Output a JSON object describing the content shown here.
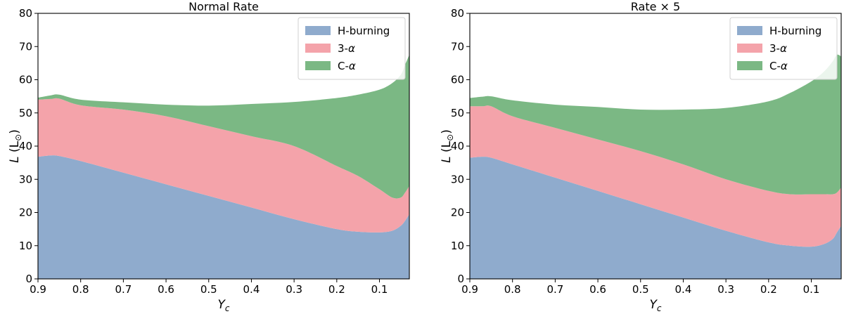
{
  "chart_data": [
    {
      "type": "area",
      "stacked": true,
      "title": "Normal Rate",
      "xlabel": "Y",
      "xlabel_sub": "c",
      "ylabel": "L",
      "ylabel_unit_open": "(L",
      "ylabel_unit_sub": "⊙",
      "ylabel_unit_close": ")",
      "xlim": [
        0.9,
        0.03
      ],
      "ylim": [
        0,
        80
      ],
      "xticks": [
        0.9,
        0.8,
        0.7,
        0.6,
        0.5,
        0.4,
        0.3,
        0.2,
        0.1
      ],
      "xtick_labels": [
        "0.9",
        "0.8",
        "0.7",
        "0.6",
        "0.5",
        "0.4",
        "0.3",
        "0.2",
        "0.1"
      ],
      "yticks": [
        0,
        10,
        20,
        30,
        40,
        50,
        60,
        70,
        80
      ],
      "ytick_labels": [
        "0",
        "10",
        "20",
        "30",
        "40",
        "50",
        "60",
        "70",
        "80"
      ],
      "legend_position": "top-right",
      "x": [
        0.9,
        0.87,
        0.85,
        0.8,
        0.7,
        0.6,
        0.5,
        0.4,
        0.3,
        0.2,
        0.15,
        0.1,
        0.07,
        0.05,
        0.04,
        0.03
      ],
      "series": [
        {
          "name": "H-burning",
          "name_prefix": "",
          "name_italic": "",
          "color": "#8fabcd",
          "values": [
            36.8,
            37.2,
            37.0,
            35.5,
            32.0,
            28.5,
            25.0,
            21.5,
            18.0,
            15.0,
            14.2,
            14.0,
            14.5,
            16.0,
            17.5,
            19.5
          ]
        },
        {
          "name": "3-α",
          "name_prefix": "3-",
          "name_italic": "α",
          "color": "#f4a3aa",
          "values": [
            17.2,
            17.0,
            17.3,
            16.8,
            19.0,
            20.5,
            21.0,
            21.5,
            22.0,
            19.0,
            16.8,
            13.0,
            10.0,
            8.5,
            8.5,
            8.5
          ]
        },
        {
          "name": "C-α",
          "name_prefix": "C-",
          "name_italic": "α",
          "color": "#7bb884",
          "values": [
            0.6,
            1.1,
            1.2,
            1.7,
            2.2,
            3.5,
            6.2,
            9.7,
            13.3,
            20.5,
            24.5,
            30.0,
            34.5,
            37.0,
            38.5,
            39.5
          ]
        }
      ]
    },
    {
      "type": "area",
      "stacked": true,
      "title": "Rate × 5",
      "xlabel": "Y",
      "xlabel_sub": "c",
      "ylabel": "L",
      "ylabel_unit_open": "(L",
      "ylabel_unit_sub": "⊙",
      "ylabel_unit_close": ")",
      "xlim": [
        0.9,
        0.03
      ],
      "ylim": [
        0,
        80
      ],
      "xticks": [
        0.9,
        0.8,
        0.7,
        0.6,
        0.5,
        0.4,
        0.3,
        0.2,
        0.1
      ],
      "xtick_labels": [
        "0.9",
        "0.8",
        "0.7",
        "0.6",
        "0.5",
        "0.4",
        "0.3",
        "0.2",
        "0.1"
      ],
      "yticks": [
        0,
        10,
        20,
        30,
        40,
        50,
        60,
        70,
        80
      ],
      "ytick_labels": [
        "0",
        "10",
        "20",
        "30",
        "40",
        "50",
        "60",
        "70",
        "80"
      ],
      "legend_position": "top-right",
      "x": [
        0.9,
        0.87,
        0.85,
        0.8,
        0.7,
        0.6,
        0.5,
        0.4,
        0.3,
        0.2,
        0.15,
        0.1,
        0.07,
        0.05,
        0.04,
        0.03
      ],
      "series": [
        {
          "name": "H-burning",
          "name_prefix": "",
          "name_italic": "",
          "color": "#8fabcd",
          "values": [
            36.5,
            36.8,
            36.5,
            34.5,
            30.5,
            26.5,
            22.5,
            18.5,
            14.5,
            11.0,
            10.0,
            9.7,
            10.5,
            12.0,
            14.0,
            16.0
          ]
        },
        {
          "name": "3-α",
          "name_prefix": "3-",
          "name_italic": "α",
          "color": "#f4a3aa",
          "values": [
            15.5,
            15.2,
            15.5,
            14.5,
            15.0,
            15.5,
            16.0,
            16.0,
            15.5,
            15.5,
            15.5,
            15.8,
            15.0,
            13.5,
            12.0,
            11.5
          ]
        },
        {
          "name": "C-α",
          "name_prefix": "C-",
          "name_italic": "α",
          "color": "#7bb884",
          "values": [
            2.5,
            2.9,
            3.0,
            4.8,
            7.0,
            9.8,
            12.5,
            16.5,
            21.5,
            27.0,
            30.5,
            34.0,
            37.0,
            40.0,
            41.5,
            39.5
          ]
        }
      ]
    }
  ]
}
